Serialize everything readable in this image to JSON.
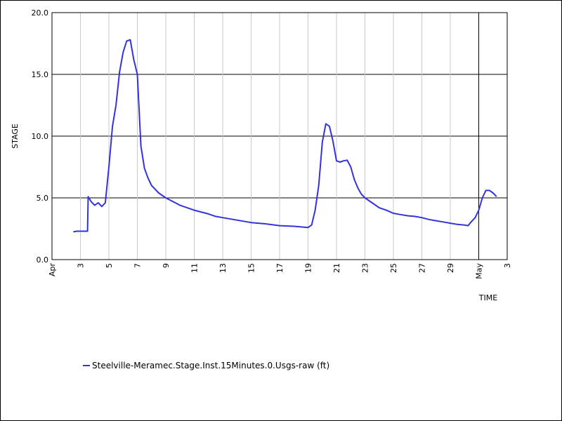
{
  "chart_data": {
    "type": "line",
    "title": "",
    "xlabel": "TIME",
    "ylabel": "STAGE",
    "ylim": [
      0,
      20
    ],
    "yticks": [
      "0.0",
      "5.0",
      "10.0",
      "15.0",
      "20.0"
    ],
    "xlim": [
      "2019-04-01",
      "2019-05-03"
    ],
    "xticks": [
      {
        "date": "2019-04-01",
        "label": "Apr"
      },
      {
        "date": "2019-04-03",
        "label": "3"
      },
      {
        "date": "2019-04-05",
        "label": "5"
      },
      {
        "date": "2019-04-07",
        "label": "7"
      },
      {
        "date": "2019-04-09",
        "label": "9"
      },
      {
        "date": "2019-04-11",
        "label": "11"
      },
      {
        "date": "2019-04-13",
        "label": "13"
      },
      {
        "date": "2019-04-15",
        "label": "15"
      },
      {
        "date": "2019-04-17",
        "label": "17"
      },
      {
        "date": "2019-04-19",
        "label": "19"
      },
      {
        "date": "2019-04-21",
        "label": "21"
      },
      {
        "date": "2019-04-23",
        "label": "23"
      },
      {
        "date": "2019-04-25",
        "label": "25"
      },
      {
        "date": "2019-04-27",
        "label": "27"
      },
      {
        "date": "2019-04-29",
        "label": "29"
      },
      {
        "date": "2019-05-01",
        "label": "May"
      },
      {
        "date": "2019-05-03",
        "label": "3"
      }
    ],
    "grid": true,
    "legend_position": "bottom-left",
    "series": [
      {
        "name": "Steelville-Meramec.Stage.Inst.15Minutes.0.Usgs-raw (ft)",
        "color": "#3333dd",
        "points": [
          [
            "2019-04-02T12:00",
            2.25
          ],
          [
            "2019-04-02T18:00",
            2.3
          ],
          [
            "2019-04-03T12:00",
            2.3
          ],
          [
            "2019-04-03T12:30",
            3.5
          ],
          [
            "2019-04-03T13:00",
            5.1
          ],
          [
            "2019-04-03T18:00",
            4.7
          ],
          [
            "2019-04-04T00:00",
            4.4
          ],
          [
            "2019-04-04T06:00",
            4.6
          ],
          [
            "2019-04-04T12:00",
            4.3
          ],
          [
            "2019-04-04T18:00",
            4.6
          ],
          [
            "2019-04-05T00:00",
            7.5
          ],
          [
            "2019-04-05T06:00",
            10.8
          ],
          [
            "2019-04-05T12:00",
            12.5
          ],
          [
            "2019-04-05T18:00",
            15.2
          ],
          [
            "2019-04-06T00:00",
            16.8
          ],
          [
            "2019-04-06T06:00",
            17.7
          ],
          [
            "2019-04-06T12:00",
            17.8
          ],
          [
            "2019-04-06T18:00",
            16.2
          ],
          [
            "2019-04-07T00:00",
            15.0
          ],
          [
            "2019-04-07T06:00",
            9.2
          ],
          [
            "2019-04-07T12:00",
            7.4
          ],
          [
            "2019-04-07T18:00",
            6.6
          ],
          [
            "2019-04-08T00:00",
            6.0
          ],
          [
            "2019-04-08T12:00",
            5.4
          ],
          [
            "2019-04-09T00:00",
            5.0
          ],
          [
            "2019-04-09T12:00",
            4.7
          ],
          [
            "2019-04-10T00:00",
            4.4
          ],
          [
            "2019-04-10T12:00",
            4.2
          ],
          [
            "2019-04-11T00:00",
            4.0
          ],
          [
            "2019-04-12T00:00",
            3.7
          ],
          [
            "2019-04-12T12:00",
            3.5
          ],
          [
            "2019-04-13T00:00",
            3.4
          ],
          [
            "2019-04-14T00:00",
            3.2
          ],
          [
            "2019-04-15T00:00",
            3.0
          ],
          [
            "2019-04-16T00:00",
            2.9
          ],
          [
            "2019-04-17T00:00",
            2.75
          ],
          [
            "2019-04-18T00:00",
            2.7
          ],
          [
            "2019-04-18T12:00",
            2.65
          ],
          [
            "2019-04-19T00:00",
            2.6
          ],
          [
            "2019-04-19T06:00",
            2.8
          ],
          [
            "2019-04-19T12:00",
            4.0
          ],
          [
            "2019-04-19T18:00",
            6.0
          ],
          [
            "2019-04-20T00:00",
            9.5
          ],
          [
            "2019-04-20T06:00",
            11.0
          ],
          [
            "2019-04-20T12:00",
            10.8
          ],
          [
            "2019-04-20T18:00",
            9.6
          ],
          [
            "2019-04-21T00:00",
            8.0
          ],
          [
            "2019-04-21T06:00",
            7.9
          ],
          [
            "2019-04-21T12:00",
            8.0
          ],
          [
            "2019-04-21T18:00",
            8.05
          ],
          [
            "2019-04-22T00:00",
            7.5
          ],
          [
            "2019-04-22T06:00",
            6.5
          ],
          [
            "2019-04-22T12:00",
            5.8
          ],
          [
            "2019-04-22T18:00",
            5.3
          ],
          [
            "2019-04-23T00:00",
            5.0
          ],
          [
            "2019-04-23T12:00",
            4.6
          ],
          [
            "2019-04-24T00:00",
            4.2
          ],
          [
            "2019-04-24T12:00",
            4.0
          ],
          [
            "2019-04-25T00:00",
            3.75
          ],
          [
            "2019-04-25T12:00",
            3.65
          ],
          [
            "2019-04-26T00:00",
            3.55
          ],
          [
            "2019-04-26T12:00",
            3.5
          ],
          [
            "2019-04-27T00:00",
            3.4
          ],
          [
            "2019-04-27T12:00",
            3.25
          ],
          [
            "2019-04-28T00:00",
            3.15
          ],
          [
            "2019-04-28T12:00",
            3.05
          ],
          [
            "2019-04-29T00:00",
            2.95
          ],
          [
            "2019-04-29T12:00",
            2.85
          ],
          [
            "2019-04-30T00:00",
            2.8
          ],
          [
            "2019-04-30T06:00",
            2.75
          ],
          [
            "2019-04-30T12:00",
            3.1
          ],
          [
            "2019-04-30T18:00",
            3.4
          ],
          [
            "2019-05-01T00:00",
            4.0
          ],
          [
            "2019-05-01T06:00",
            5.0
          ],
          [
            "2019-05-01T12:00",
            5.6
          ],
          [
            "2019-05-01T18:00",
            5.6
          ],
          [
            "2019-05-02T00:00",
            5.4
          ],
          [
            "2019-05-02T06:00",
            5.1
          ]
        ]
      }
    ]
  }
}
